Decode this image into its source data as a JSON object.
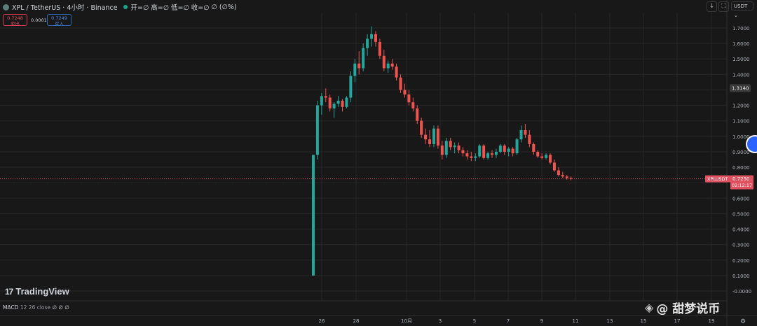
{
  "header": {
    "symbol": "XPL / TetherUS · 4小时 · Binance",
    "open_label": "开=∅",
    "high_label": "高=∅",
    "low_label": "低=∅",
    "close_label": "收=∅",
    "change_label": "∅ (∅%)"
  },
  "order": {
    "sell_price": "0.7248",
    "sell_label": "卖出",
    "spread": "0.0001",
    "buy_price": "0.7249",
    "buy_label": "买入"
  },
  "toolbar": {
    "down_icon": "↓",
    "fullscreen_icon": "⛶",
    "currency": "USDT",
    "currency_chevron": "⌄"
  },
  "price_tag": {
    "symbol": "XPLUSDT",
    "price": "0.7250",
    "countdown": "02:12:17"
  },
  "highlight_price": "1.3140",
  "logo": {
    "mark": "17",
    "text": "TradingView"
  },
  "macd": {
    "name": "MACD",
    "params": "12 26 close",
    "values": "∅ ∅ ∅"
  },
  "watermark": {
    "icon": "binance-diamond-icon",
    "text": "@ 甜梦说币"
  },
  "colors": {
    "up": "#26a69a",
    "down": "#ef5350",
    "background": "#181818",
    "grid": "#262626",
    "price_line": "#e0505f"
  },
  "chart_data": {
    "type": "candlestick",
    "title": "XPL / TetherUS · 4小时 · Binance",
    "y_ticks": [
      "1.7000",
      "1.6000",
      "1.5000",
      "1.4000",
      "1.3000",
      "1.2000",
      "1.1000",
      "1.0000",
      "0.9000",
      "0.8000",
      "0.7000",
      "0.6000",
      "0.5000",
      "0.4000",
      "0.3000",
      "0.2000",
      "0.1000",
      "-0.0000"
    ],
    "y_tick_values": [
      1.7,
      1.6,
      1.5,
      1.4,
      1.3,
      1.2,
      1.1,
      1.0,
      0.9,
      0.8,
      0.7,
      0.6,
      0.5,
      0.4,
      0.3,
      0.2,
      0.1,
      0.0
    ],
    "ylim": [
      -0.02,
      1.78
    ],
    "x_ticks": [
      "26",
      "28",
      "10月",
      "3",
      "5",
      "7",
      "9",
      "11",
      "13",
      "15",
      "17",
      "19"
    ],
    "x_tick_positions": [
      25,
      37,
      49,
      61,
      73,
      85,
      97,
      109,
      121,
      133,
      145,
      157
    ],
    "current_price": 0.725,
    "candles": [
      [
        0.1,
        0.88,
        0.1,
        0.88
      ],
      [
        0.88,
        1.23,
        0.85,
        1.2
      ],
      [
        1.2,
        1.28,
        1.14,
        1.26
      ],
      [
        1.26,
        1.31,
        1.22,
        1.25
      ],
      [
        1.25,
        1.27,
        1.16,
        1.18
      ],
      [
        1.18,
        1.22,
        1.12,
        1.21
      ],
      [
        1.21,
        1.26,
        1.19,
        1.23
      ],
      [
        1.23,
        1.24,
        1.16,
        1.19
      ],
      [
        1.19,
        1.26,
        1.18,
        1.25
      ],
      [
        1.25,
        1.42,
        1.22,
        1.39
      ],
      [
        1.39,
        1.5,
        1.35,
        1.47
      ],
      [
        1.47,
        1.55,
        1.4,
        1.44
      ],
      [
        1.44,
        1.6,
        1.42,
        1.57
      ],
      [
        1.57,
        1.66,
        1.52,
        1.63
      ],
      [
        1.63,
        1.71,
        1.58,
        1.66
      ],
      [
        1.66,
        1.68,
        1.58,
        1.61
      ],
      [
        1.61,
        1.63,
        1.5,
        1.52
      ],
      [
        1.52,
        1.56,
        1.42,
        1.44
      ],
      [
        1.44,
        1.49,
        1.41,
        1.47
      ],
      [
        1.47,
        1.5,
        1.43,
        1.45
      ],
      [
        1.45,
        1.47,
        1.36,
        1.38
      ],
      [
        1.38,
        1.4,
        1.28,
        1.3
      ],
      [
        1.3,
        1.34,
        1.25,
        1.27
      ],
      [
        1.27,
        1.3,
        1.2,
        1.22
      ],
      [
        1.22,
        1.25,
        1.16,
        1.18
      ],
      [
        1.18,
        1.2,
        1.08,
        1.1
      ],
      [
        1.1,
        1.12,
        0.99,
        1.01
      ],
      [
        1.01,
        1.05,
        0.95,
        0.98
      ],
      [
        0.98,
        1.04,
        0.93,
        0.95
      ],
      [
        0.95,
        1.07,
        0.93,
        1.05
      ],
      [
        1.05,
        1.07,
        0.92,
        0.94
      ],
      [
        0.94,
        0.97,
        0.85,
        0.88
      ],
      [
        0.88,
        0.99,
        0.86,
        0.97
      ],
      [
        0.97,
        0.99,
        0.91,
        0.93
      ],
      [
        0.93,
        0.96,
        0.89,
        0.94
      ],
      [
        0.94,
        0.96,
        0.89,
        0.91
      ],
      [
        0.91,
        0.93,
        0.87,
        0.89
      ],
      [
        0.89,
        0.91,
        0.85,
        0.87
      ],
      [
        0.87,
        0.9,
        0.84,
        0.86
      ],
      [
        0.86,
        0.89,
        0.84,
        0.87
      ],
      [
        0.87,
        0.95,
        0.86,
        0.94
      ],
      [
        0.94,
        0.95,
        0.85,
        0.86
      ],
      [
        0.86,
        0.9,
        0.85,
        0.89
      ],
      [
        0.89,
        0.91,
        0.86,
        0.88
      ],
      [
        0.88,
        0.92,
        0.86,
        0.9
      ],
      [
        0.9,
        0.95,
        0.89,
        0.94
      ],
      [
        0.94,
        0.95,
        0.88,
        0.9
      ],
      [
        0.9,
        0.93,
        0.87,
        0.92
      ],
      [
        0.92,
        0.93,
        0.87,
        0.89
      ],
      [
        0.89,
        0.99,
        0.88,
        0.98
      ],
      [
        0.98,
        1.07,
        0.96,
        1.04
      ],
      [
        1.04,
        1.08,
        0.99,
        1.01
      ],
      [
        1.01,
        1.04,
        0.93,
        0.95
      ],
      [
        0.95,
        0.96,
        0.88,
        0.9
      ],
      [
        0.9,
        0.91,
        0.86,
        0.87
      ],
      [
        0.87,
        0.89,
        0.85,
        0.86
      ],
      [
        0.86,
        0.89,
        0.85,
        0.88
      ],
      [
        0.88,
        0.89,
        0.82,
        0.83
      ],
      [
        0.83,
        0.85,
        0.77,
        0.78
      ],
      [
        0.78,
        0.8,
        0.74,
        0.75
      ],
      [
        0.75,
        0.77,
        0.73,
        0.74
      ],
      [
        0.74,
        0.75,
        0.72,
        0.73
      ],
      [
        0.73,
        0.74,
        0.715,
        0.725
      ]
    ]
  }
}
